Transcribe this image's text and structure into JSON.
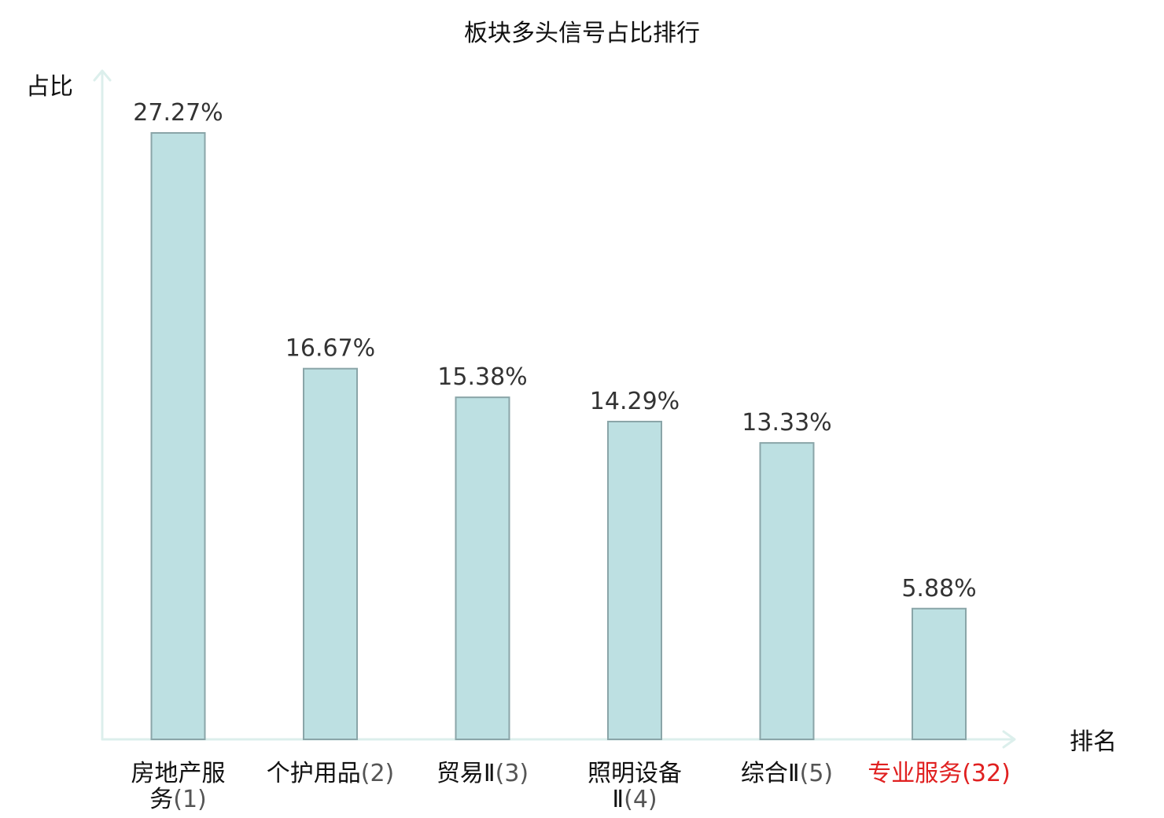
{
  "chart_data": {
    "type": "bar",
    "title": "板块多头信号占比排行",
    "ylabel": "占比",
    "xlabel": "排名",
    "ylim": [
      0,
      30
    ],
    "grid": false,
    "categories": [
      {
        "name": "房地产服务",
        "rank": "(1)",
        "line1": "房地产服",
        "line2_cjk": "务",
        "highlight": false
      },
      {
        "name": "个护用品",
        "rank": "(2)",
        "line1": "个护用品",
        "line2_cjk": "",
        "highlight": false
      },
      {
        "name": "贸易Ⅱ",
        "rank": "(3)",
        "line1": "贸易Ⅱ",
        "line2_cjk": "",
        "highlight": false
      },
      {
        "name": "照明设备Ⅱ",
        "rank": "(4)",
        "line1": "照明设备",
        "line2_cjk": "Ⅱ",
        "highlight": false
      },
      {
        "name": "综合Ⅱ",
        "rank": "(5)",
        "line1": "综合Ⅱ",
        "line2_cjk": "",
        "highlight": false
      },
      {
        "name": "专业服务",
        "rank": "(32)",
        "line1": "专业服务",
        "line2_cjk": "",
        "highlight": true
      }
    ],
    "values": [
      27.27,
      16.67,
      15.38,
      14.29,
      13.33,
      5.88
    ],
    "value_labels": [
      "27.27%",
      "16.67%",
      "15.38%",
      "14.29%",
      "13.33%",
      "5.88%"
    ],
    "colors": {
      "bar_fill": "#bde0e2",
      "bar_stroke": "#8aa5a8",
      "axis": "#dcefec",
      "highlight": "#e02020",
      "rank_text": "#555555"
    }
  }
}
